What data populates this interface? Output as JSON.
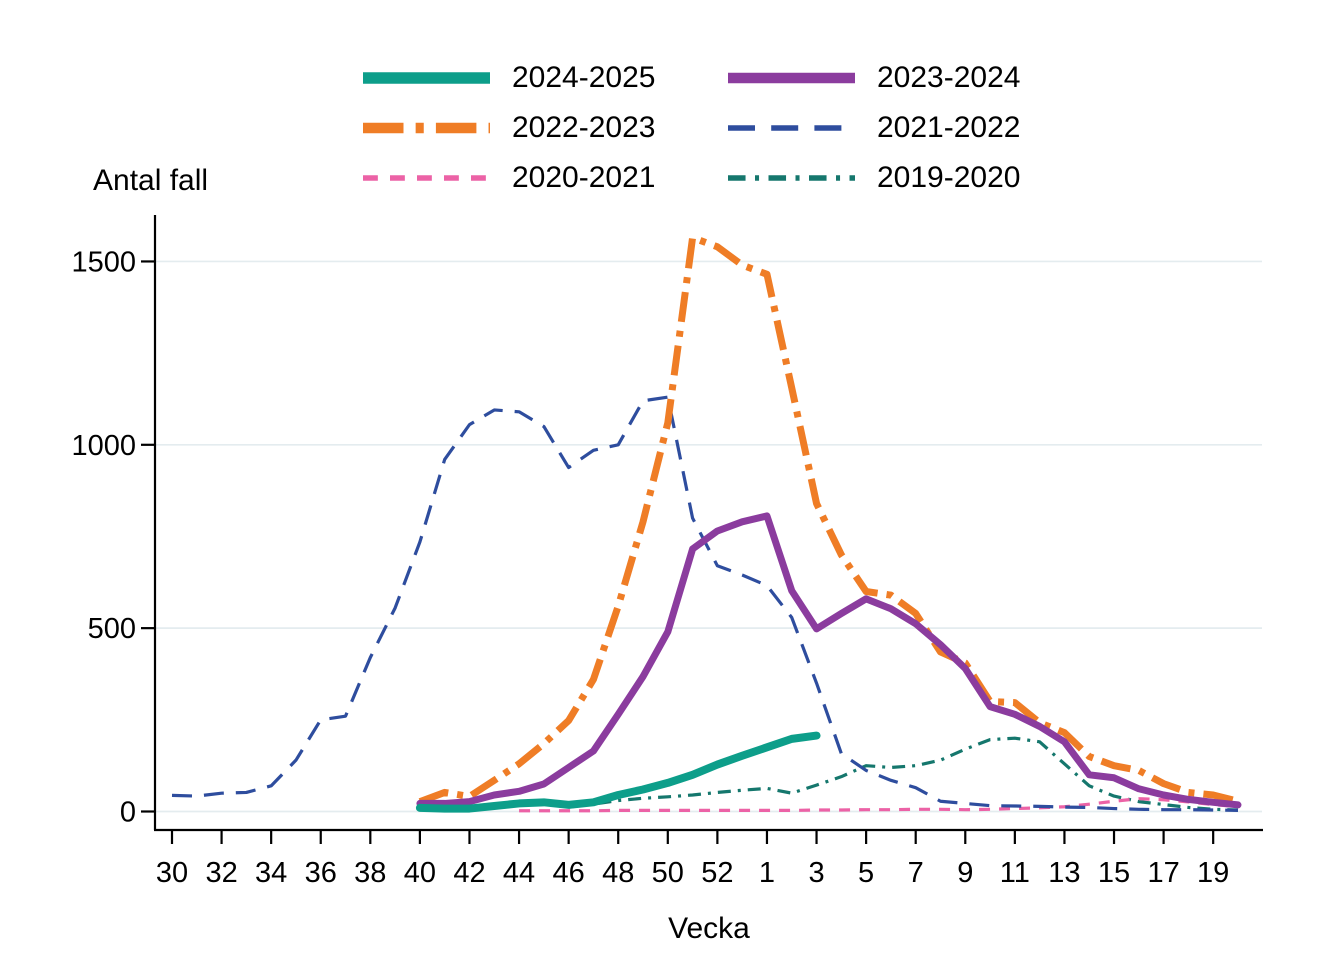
{
  "chart_data": {
    "type": "line",
    "title": "",
    "ylabel": "Antal fall",
    "xlabel": "Vecka",
    "y_ticks": [
      0,
      500,
      1000,
      1500
    ],
    "ylim": [
      0,
      1650
    ],
    "grid": "horizontal-only",
    "legend_position": "top-center-two-columns",
    "x_axis": {
      "description": "Weeks 30-52 followed by weeks 1-20, one point per week, labels every 2 weeks",
      "tick_labels": [
        "30",
        "32",
        "34",
        "36",
        "38",
        "40",
        "42",
        "44",
        "46",
        "48",
        "50",
        "52",
        "1",
        "3",
        "5",
        "7",
        "9",
        "11",
        "13",
        "15",
        "17",
        "19"
      ],
      "tick_every_index": 2,
      "n_points": 44
    },
    "series": [
      {
        "name": "2024-2025",
        "color": "#0d9e8a",
        "style": "solid",
        "width": 8,
        "start_index": 10,
        "values": [
          10,
          8,
          8,
          15,
          22,
          25,
          18,
          25,
          45,
          60,
          78,
          100,
          128,
          152,
          175,
          198,
          207
        ]
      },
      {
        "name": "2023-2024",
        "color": "#8b3c9e",
        "style": "solid",
        "width": 7,
        "start_index": 10,
        "values": [
          22,
          22,
          27,
          45,
          55,
          75,
          120,
          165,
          265,
          368,
          490,
          716,
          765,
          790,
          806,
          602,
          498,
          540,
          580,
          553,
          512,
          455,
          390,
          286,
          265,
          232,
          190,
          100,
          92,
          62,
          45,
          33,
          25,
          18
        ]
      },
      {
        "name": "2022-2023",
        "color": "#ef7d26",
        "style": "dashdot",
        "width": 7,
        "dash": [
          30,
          9,
          6,
          9
        ],
        "start_index": 10,
        "values": [
          27,
          52,
          41,
          85,
          130,
          185,
          248,
          360,
          560,
          790,
          1060,
          1565,
          1540,
          1490,
          1465,
          1155,
          840,
          700,
          600,
          590,
          540,
          435,
          405,
          300,
          297,
          242,
          215,
          150,
          125,
          112,
          76,
          52,
          45,
          28
        ]
      },
      {
        "name": "2021-2022",
        "color": "#2e4d9e",
        "style": "dash",
        "width": 3.2,
        "dash": [
          20,
          12
        ],
        "start_index": 0,
        "values": [
          44,
          42,
          50,
          52,
          70,
          140,
          250,
          260,
          420,
          555,
          735,
          960,
          1055,
          1095,
          1090,
          1050,
          938,
          985,
          1000,
          1120,
          1130,
          800,
          670,
          645,
          616,
          529,
          350,
          158,
          112,
          85,
          65,
          28,
          22,
          16,
          15,
          14,
          12,
          11,
          8,
          6,
          5,
          5,
          4,
          3
        ]
      },
      {
        "name": "2020-2021",
        "color": "#ec62a6",
        "style": "dash-short",
        "width": 3.2,
        "dash": [
          11,
          9
        ],
        "start_index": 14,
        "values": [
          2,
          2,
          2,
          2,
          3,
          3,
          3,
          3,
          3,
          3,
          3,
          3,
          4,
          4,
          5,
          5,
          6,
          6,
          5,
          6,
          8,
          10,
          13,
          20,
          28,
          35,
          32,
          26,
          19,
          13
        ]
      },
      {
        "name": "2019-2020",
        "color": "#15776d",
        "style": "dashdot-small",
        "width": 3.2,
        "dash": [
          13,
          7,
          3,
          7
        ],
        "start_index": 16,
        "values": [
          12,
          20,
          30,
          36,
          40,
          45,
          52,
          58,
          63,
          50,
          72,
          95,
          125,
          120,
          125,
          140,
          170,
          196,
          200,
          190,
          130,
          70,
          42,
          27,
          19,
          11,
          6,
          4
        ]
      }
    ],
    "colors": {
      "axis": "#000000",
      "gridline": "#e4ecef",
      "background": "#ffffff",
      "text": "#000000"
    }
  }
}
